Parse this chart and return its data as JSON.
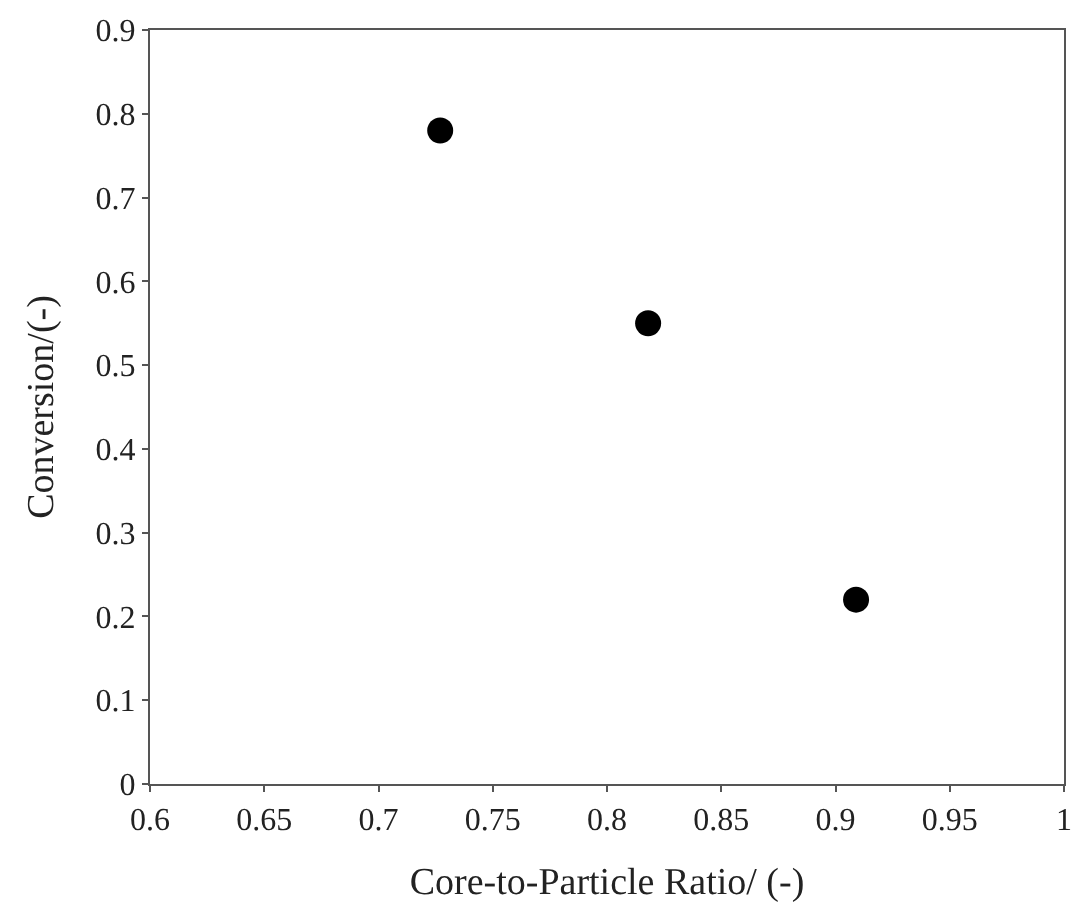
{
  "chart_data": {
    "type": "scatter",
    "xlabel": "Core-to-Particle Ratio/ (-)",
    "ylabel": "Conversion/(-)",
    "x": [
      0.727,
      0.818,
      0.909
    ],
    "series": [
      {
        "color": "#000000",
        "values": [
          0.78,
          0.55,
          0.22
        ]
      }
    ],
    "xlim": [
      0.6,
      1
    ],
    "xticks": [
      {
        "value": 0.6,
        "label": "0.6"
      },
      {
        "value": 0.65,
        "label": "0.65"
      },
      {
        "value": 0.7,
        "label": "0.7"
      },
      {
        "value": 0.75,
        "label": "0.75"
      },
      {
        "value": 0.8,
        "label": "0.8"
      },
      {
        "value": 0.85,
        "label": "0.85"
      },
      {
        "value": 0.9,
        "label": "0.9"
      },
      {
        "value": 0.95,
        "label": "0.95"
      },
      {
        "value": 1,
        "label": "1"
      }
    ],
    "ylim": [
      0,
      0.9
    ],
    "yticks": [
      0,
      {
        "value": 0.1,
        "label": "0.1"
      },
      {
        "value": 0.2,
        "label": "0.2"
      },
      {
        "value": 0.3,
        "label": "0.3"
      },
      {
        "value": 0.4,
        "label": "0.4"
      },
      {
        "value": 0.5,
        "label": "0.5"
      },
      {
        "value": 0.6,
        "label": "0.6"
      },
      {
        "value": 0.7,
        "label": "0.7"
      },
      {
        "value": 0.8,
        "label": "0.8"
      },
      {
        "value": 0.9,
        "label": "0.9"
      }
    ],
    "marker": "circle"
  }
}
